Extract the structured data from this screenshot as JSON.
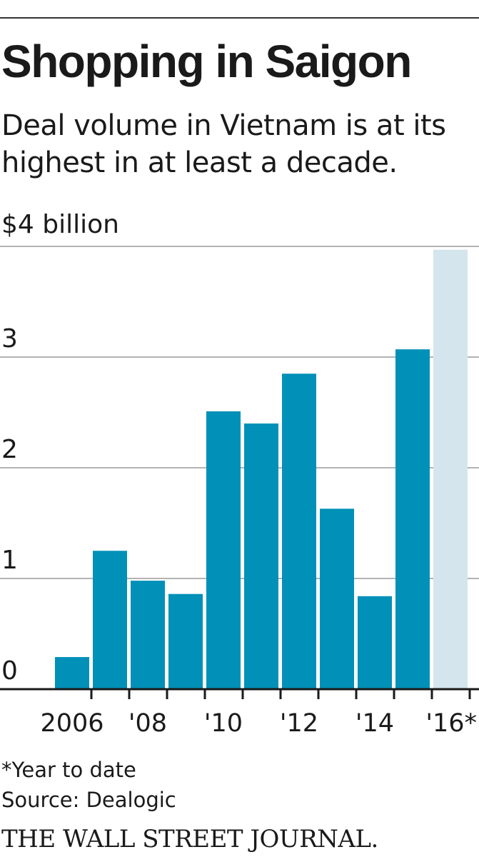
{
  "colors": {
    "bar": "#0090b8",
    "bar_partial": "#d4e5ee",
    "grid": "#b3b3b3",
    "axis": "#1a1a1a"
  },
  "header": {
    "title": "Shopping in Saigon",
    "subtitle": "Deal volume in Vietnam is at its highest in at least a decade."
  },
  "footer": {
    "footnote": "*Year to date",
    "source": "Source: Dealogic",
    "brand": "THE WALL STREET JOURNAL."
  },
  "chart_data": {
    "type": "bar",
    "title": "Shopping in Saigon",
    "subtitle": "Deal volume in Vietnam is at its highest in at least a decade.",
    "unit_label": "$4 billion",
    "categories": [
      "2006",
      "2007",
      "2008",
      "2009",
      "2010",
      "2011",
      "2012",
      "2013",
      "2014",
      "2015",
      "2016"
    ],
    "values": [
      0.29,
      1.25,
      0.98,
      0.86,
      2.51,
      2.4,
      2.85,
      1.63,
      0.84,
      3.07,
      3.97
    ],
    "partial_period": "2016",
    "x_tick_labels": [
      "2006",
      "",
      "'08",
      "",
      "'10",
      "",
      "'12",
      "",
      "'14",
      "",
      "'16*"
    ],
    "y_ticks": [
      0,
      1,
      2,
      3,
      4
    ],
    "y_tick_labels": [
      "0",
      "1",
      "2",
      "3",
      "$4 billion"
    ],
    "ylim": [
      0,
      4
    ],
    "grid": true,
    "legend": "none"
  }
}
